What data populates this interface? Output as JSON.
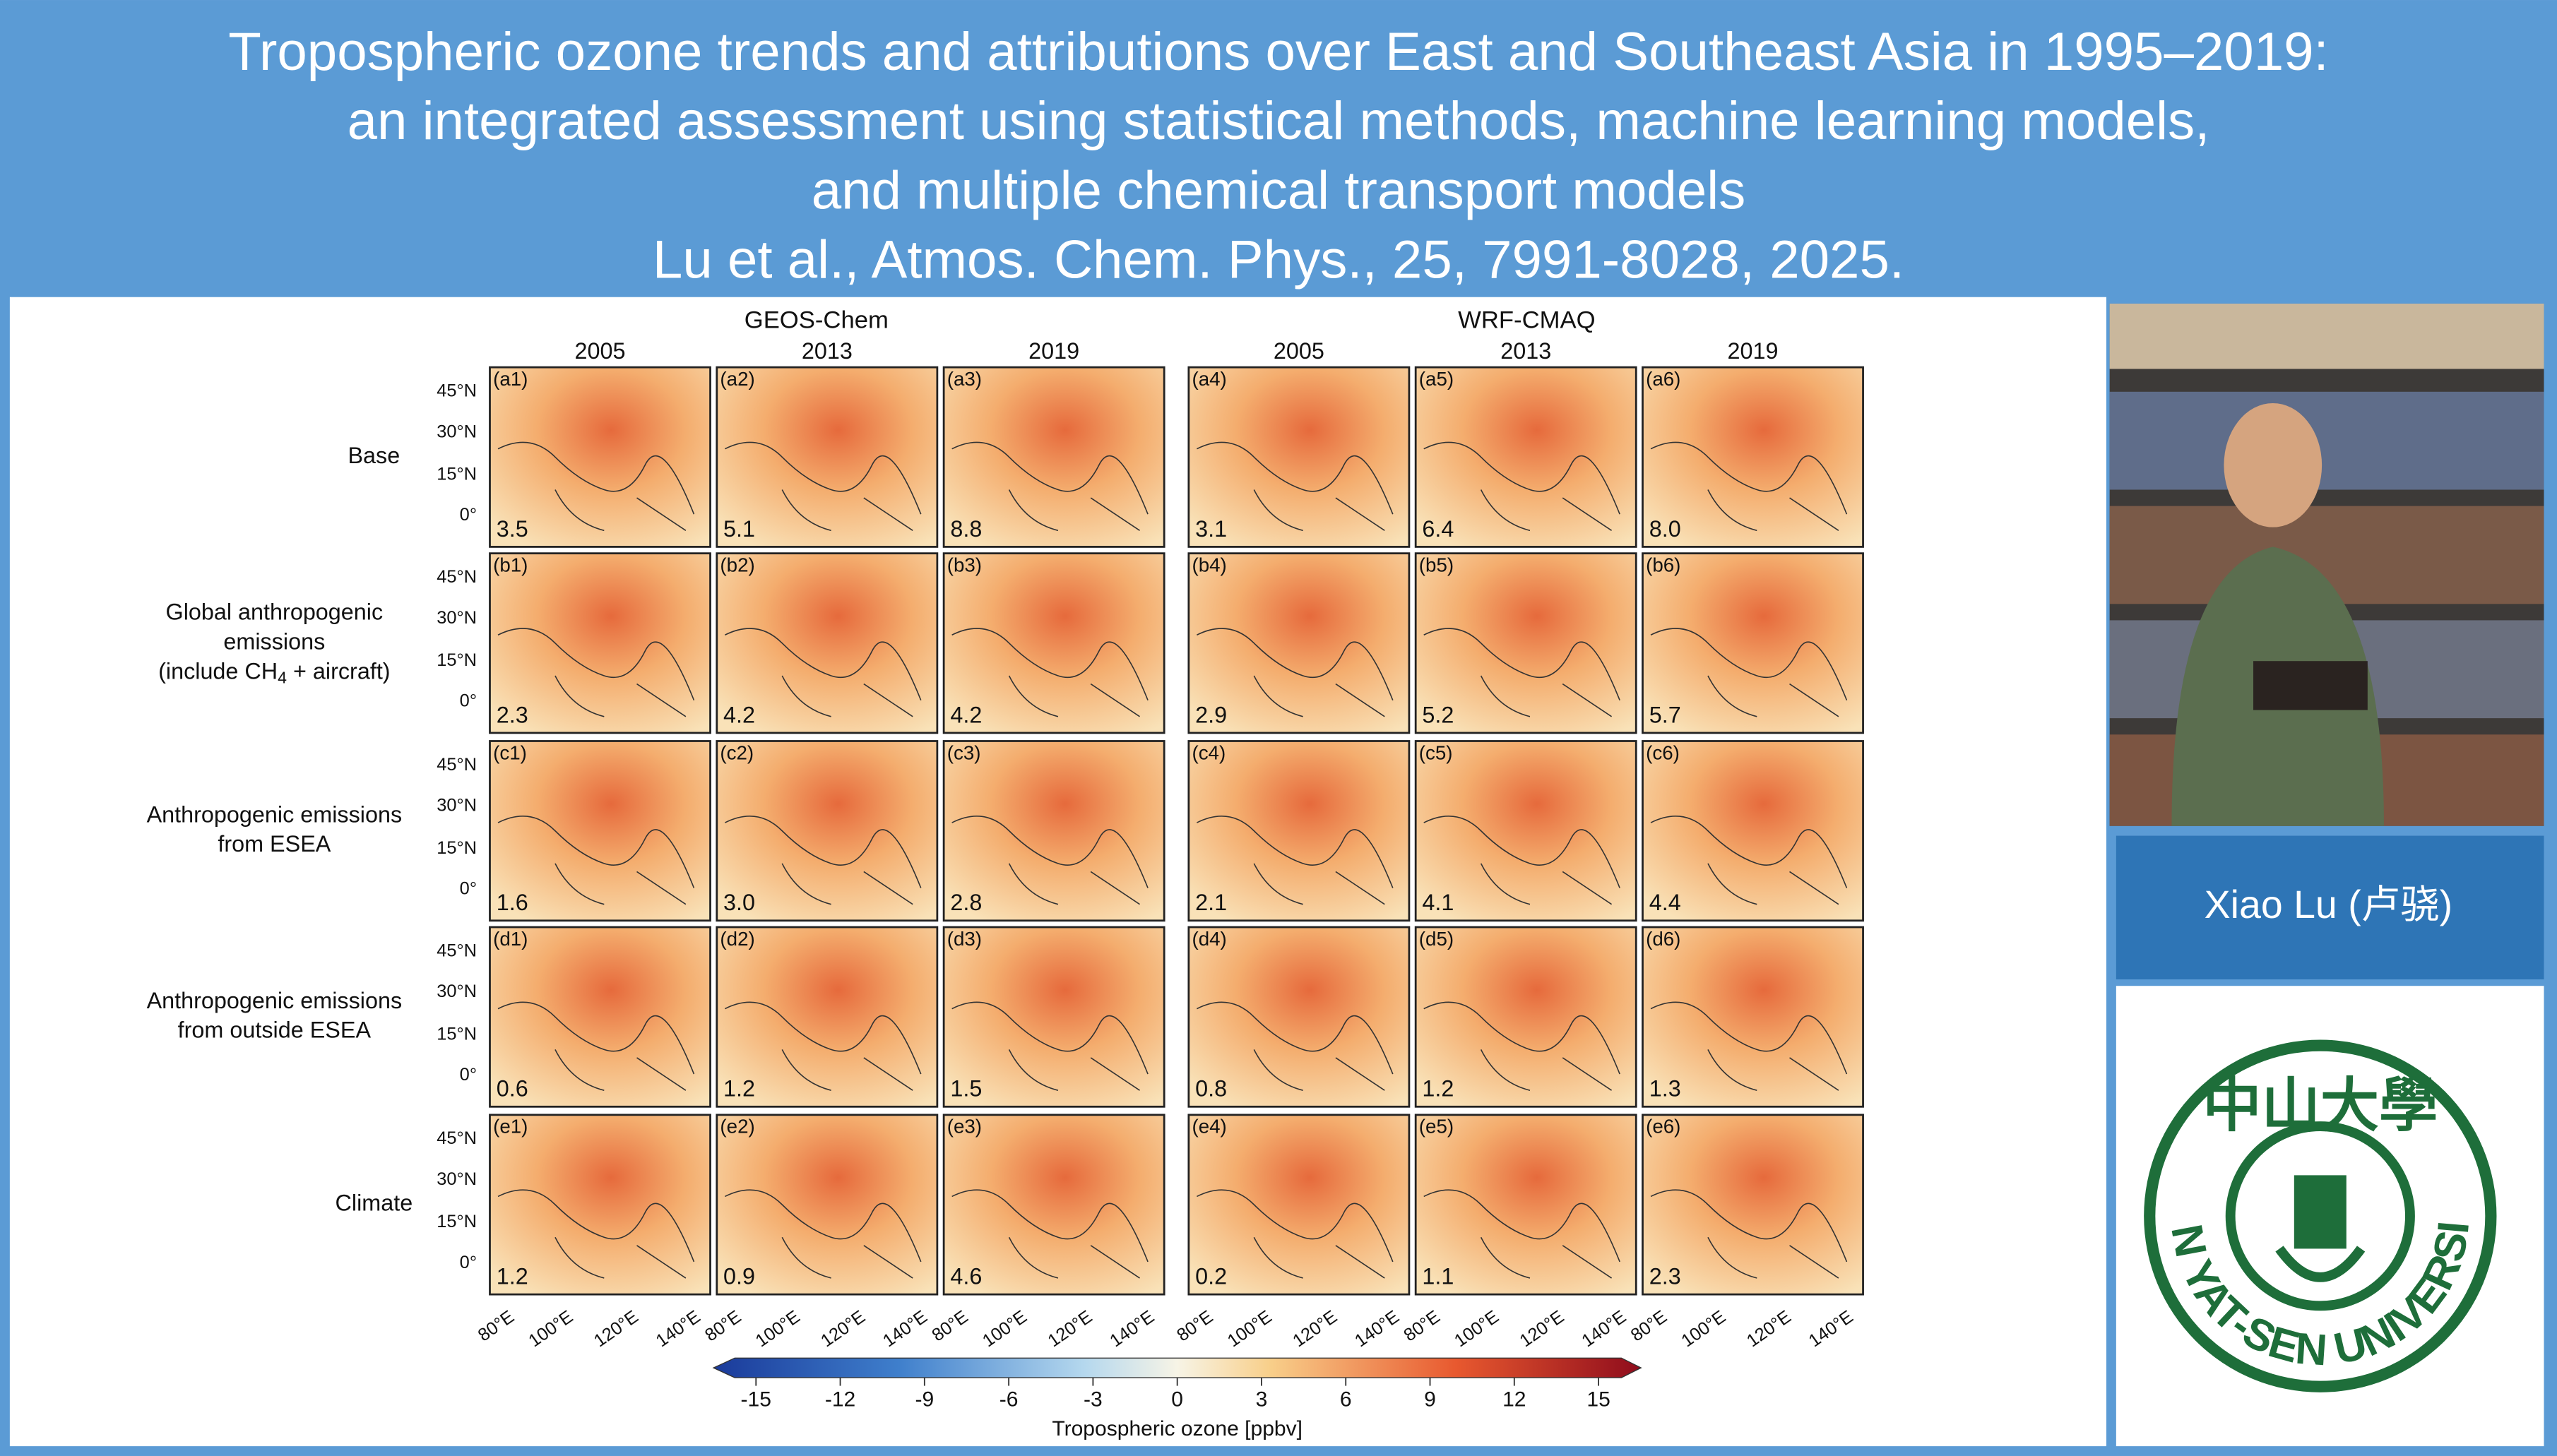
{
  "header": {
    "lines": [
      "Tropospheric ozone trends and attributions over East and Southeast Asia in 1995–2019:",
      "an integrated assessment using statistical methods, machine learning models,",
      "and multiple chemical transport models",
      "Lu et al., Atmos. Chem. Phys., 25, 7991-8028, 2025."
    ]
  },
  "figure": {
    "models": [
      "GEOS-Chem",
      "WRF-CMAQ"
    ],
    "years": [
      "2005",
      "2013",
      "2019",
      "2005",
      "2013",
      "2019"
    ],
    "lat_labels": [
      "45°N",
      "30°N",
      "15°N",
      "0°"
    ],
    "lon_labels": [
      "80°E",
      "100°E",
      "120°E",
      "140°E"
    ],
    "rows": [
      {
        "label": [
          "Base"
        ],
        "panels": [
          {
            "id": "(a1)",
            "value": "3.5"
          },
          {
            "id": "(a2)",
            "value": "5.1"
          },
          {
            "id": "(a3)",
            "value": "8.8"
          },
          {
            "id": "(a4)",
            "value": "3.1"
          },
          {
            "id": "(a5)",
            "value": "6.4"
          },
          {
            "id": "(a6)",
            "value": "8.0"
          }
        ]
      },
      {
        "label": [
          "Global anthropogenic",
          "emissions",
          [
            "(include CH",
            "4",
            " + aircraft)"
          ]
        ],
        "panels": [
          {
            "id": "(b1)",
            "value": "2.3"
          },
          {
            "id": "(b2)",
            "value": "4.2"
          },
          {
            "id": "(b3)",
            "value": "4.2"
          },
          {
            "id": "(b4)",
            "value": "2.9"
          },
          {
            "id": "(b5)",
            "value": "5.2"
          },
          {
            "id": "(b6)",
            "value": "5.7"
          }
        ]
      },
      {
        "label": [
          "Anthropogenic emissions",
          "from ESEA"
        ],
        "panels": [
          {
            "id": "(c1)",
            "value": "1.6"
          },
          {
            "id": "(c2)",
            "value": "3.0"
          },
          {
            "id": "(c3)",
            "value": "2.8"
          },
          {
            "id": "(c4)",
            "value": "2.1"
          },
          {
            "id": "(c5)",
            "value": "4.1"
          },
          {
            "id": "(c6)",
            "value": "4.4"
          }
        ]
      },
      {
        "label": [
          "Anthropogenic emissions",
          "from outside ESEA"
        ],
        "panels": [
          {
            "id": "(d1)",
            "value": "0.6"
          },
          {
            "id": "(d2)",
            "value": "1.2"
          },
          {
            "id": "(d3)",
            "value": "1.5"
          },
          {
            "id": "(d4)",
            "value": "0.8"
          },
          {
            "id": "(d5)",
            "value": "1.2"
          },
          {
            "id": "(d6)",
            "value": "1.3"
          }
        ]
      },
      {
        "label": [
          "Climate"
        ],
        "panels": [
          {
            "id": "(e1)",
            "value": "1.2"
          },
          {
            "id": "(e2)",
            "value": "0.9"
          },
          {
            "id": "(e3)",
            "value": "4.6"
          },
          {
            "id": "(e4)",
            "value": "0.2"
          },
          {
            "id": "(e5)",
            "value": "1.1"
          },
          {
            "id": "(e6)",
            "value": "2.3"
          }
        ]
      }
    ],
    "colorbar": {
      "ticks": [
        -15,
        -12,
        -9,
        -6,
        -3,
        0,
        3,
        6,
        9,
        12,
        15
      ],
      "label": "Tropospheric ozone [ppbv]"
    }
  },
  "author": {
    "name": "Xiao Lu (卢骁)"
  },
  "logo": {
    "chinese": "中山大學",
    "english": "SUN YAT-SEN UNIVERSITY"
  }
}
